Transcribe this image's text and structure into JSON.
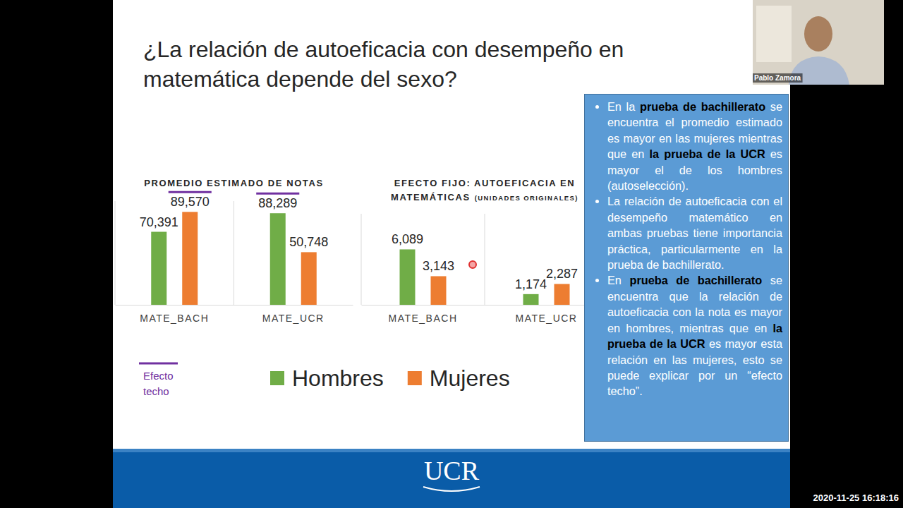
{
  "slide_title": "¿La relación de autoeficacia con desempeño en matemática depende del sexo?",
  "chart_data": [
    {
      "type": "bar",
      "title": "PROMEDIO ESTIMADO DE NOTAS",
      "categories": [
        "MATE_BACH",
        "MATE_UCR"
      ],
      "series": [
        {
          "name": "Hombres",
          "color": "#70ad47",
          "values": [
            70.391,
            88.289
          ],
          "value_labels": [
            "70,391",
            "88,289"
          ]
        },
        {
          "name": "Mujeres",
          "color": "#ed7d31",
          "values": [
            89.57,
            50.748
          ],
          "value_labels": [
            "89,570",
            "50,748"
          ]
        }
      ],
      "ylim": [
        0,
        100
      ],
      "data_labels": true,
      "tick_labels": "x",
      "legend": "bottom"
    },
    {
      "type": "bar",
      "title": "EFECTO FIJO: AUTOEFICACIA EN MATEMÁTICAS",
      "subtitle": "(UNIDADES ORIGINALES)",
      "categories": [
        "MATE_BACH",
        "MATE_UCR"
      ],
      "series": [
        {
          "color": "#70ad47",
          "values": [
            6.089,
            1.174
          ],
          "value_labels": [
            "6,089",
            "1,174"
          ]
        },
        {
          "color": "#ed7d31",
          "values": [
            3.143,
            2.287
          ],
          "value_labels": [
            "3,143",
            "2,287"
          ]
        }
      ],
      "ylim": [
        0,
        10
      ],
      "data_labels": true,
      "tick_labels": "x"
    }
  ],
  "efecto_techo": {
    "label": "Efecto techo",
    "color": "#7030a0",
    "chart": "PROMEDIO ESTIMADO DE NOTAS",
    "marked": [
      {
        "category": "MATE_BACH",
        "series": "Mujeres"
      },
      {
        "category": "MATE_UCR",
        "series": "Hombres"
      }
    ]
  },
  "text_box": {
    "bullets": [
      [
        {
          "text": "En la "
        },
        {
          "text": "prueba de bachillerato",
          "bold": true
        },
        {
          "text": " se encuentra el promedio estimado es mayor en las mujeres mientras que en "
        },
        {
          "text": "la prueba de la UCR",
          "bold": true
        },
        {
          "text": " es mayor el de los hombres (autoselección)."
        }
      ],
      [
        {
          "text": "La relación de autoeficacia con el desempeño matemático en ambas pruebas tiene importancia práctica, particularmente en la prueba de bachillerato."
        }
      ],
      [
        {
          "text": "En "
        },
        {
          "text": "prueba de bachillerato",
          "bold": true
        },
        {
          "text": " se encuentra que la relación de autoeficacia con la nota es mayor en hombres, mientras que en "
        },
        {
          "text": "la prueba de la UCR",
          "bold": true
        },
        {
          "text": " es mayor esta relación en las mujeres, esto se puede explicar por un “efecto techo”."
        }
      ]
    ]
  },
  "footer": {
    "logo": "UCR"
  },
  "webcam": {
    "name": "Pablo Zamora"
  },
  "timestamp": "2020-11-25 16:18:16"
}
